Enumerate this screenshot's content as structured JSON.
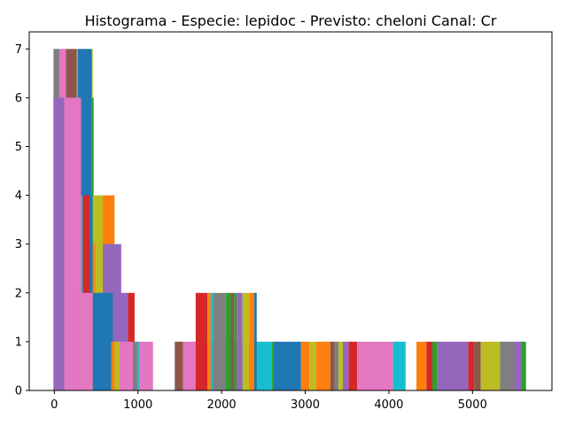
{
  "chart_data": {
    "type": "bar",
    "title": "Histograma - Especie: lepidoc - Previsto: cheloni Canal: Cr",
    "xlabel": "",
    "ylabel": "",
    "xlim": [
      -300,
      5950
    ],
    "ylim": [
      0,
      7.35
    ],
    "x_ticks": [
      0,
      1000,
      2000,
      3000,
      4000,
      5000
    ],
    "y_ticks": [
      0,
      1,
      2,
      3,
      4,
      5,
      6,
      7
    ],
    "grid": false,
    "legend": "none",
    "palette": [
      "#1f77b4",
      "#ff7f0e",
      "#2ca02c",
      "#d62728",
      "#9467bd",
      "#8c564b",
      "#e377c2",
      "#7f7f7f",
      "#bcbd22",
      "#17becf"
    ],
    "bars": [
      {
        "x0": -10,
        "x1": 60,
        "height": 7,
        "color": "#7f7f7f"
      },
      {
        "x0": 60,
        "x1": 140,
        "height": 7,
        "color": "#e377c2"
      },
      {
        "x0": 140,
        "x1": 270,
        "height": 7,
        "color": "#8c564b"
      },
      {
        "x0": 270,
        "x1": 280,
        "height": 7,
        "color": "#bcbd22"
      },
      {
        "x0": 280,
        "x1": 450,
        "height": 7,
        "color": "#1f77b4"
      },
      {
        "x0": 450,
        "x1": 460,
        "height": 7,
        "color": "#bcbd22"
      },
      {
        "x0": 450,
        "x1": 470,
        "height": 6,
        "color": "#2ca02c"
      },
      {
        "x0": -10,
        "x1": 120,
        "height": 6,
        "color": "#9467bd"
      },
      {
        "x0": 120,
        "x1": 320,
        "height": 6,
        "color": "#e377c2"
      },
      {
        "x0": 320,
        "x1": 340,
        "height": 4,
        "color": "#17becf"
      },
      {
        "x0": 340,
        "x1": 420,
        "height": 4,
        "color": "#d62728"
      },
      {
        "x0": 420,
        "x1": 460,
        "height": 4,
        "color": "#1f77b4"
      },
      {
        "x0": 460,
        "x1": 580,
        "height": 4,
        "color": "#bcbd22"
      },
      {
        "x0": 580,
        "x1": 720,
        "height": 4,
        "color": "#ff7f0e"
      },
      {
        "x0": 460,
        "x1": 490,
        "height": 3,
        "color": "#ff7f0e"
      },
      {
        "x0": 540,
        "x1": 580,
        "height": 3,
        "color": "#bcbd22"
      },
      {
        "x0": 580,
        "x1": 800,
        "height": 3,
        "color": "#9467bd"
      },
      {
        "x0": 300,
        "x1": 460,
        "height": 2,
        "color": "#e377c2"
      },
      {
        "x0": 460,
        "x1": 700,
        "height": 2,
        "color": "#1f77b4"
      },
      {
        "x0": 700,
        "x1": 880,
        "height": 2,
        "color": "#9467bd"
      },
      {
        "x0": 880,
        "x1": 960,
        "height": 2,
        "color": "#d62728"
      },
      {
        "x0": 680,
        "x1": 720,
        "height": 1,
        "color": "#ff7f0e"
      },
      {
        "x0": 720,
        "x1": 780,
        "height": 1,
        "color": "#bcbd22"
      },
      {
        "x0": 780,
        "x1": 940,
        "height": 1,
        "color": "#e377c2"
      },
      {
        "x0": 940,
        "x1": 1000,
        "height": 1,
        "color": "#7f7f7f"
      },
      {
        "x0": 1000,
        "x1": 1020,
        "height": 1,
        "color": "#17becf"
      },
      {
        "x0": 1020,
        "x1": 1180,
        "height": 1,
        "color": "#e377c2"
      },
      {
        "x0": 1440,
        "x1": 1540,
        "height": 1,
        "color": "#8c564b"
      },
      {
        "x0": 1540,
        "x1": 1780,
        "height": 1,
        "color": "#e377c2"
      },
      {
        "x0": 1780,
        "x1": 1850,
        "height": 1,
        "color": "#7f7f7f"
      },
      {
        "x0": 1850,
        "x1": 1880,
        "height": 1,
        "color": "#8c564b"
      },
      {
        "x0": 1880,
        "x1": 1950,
        "height": 1,
        "color": "#d62728"
      },
      {
        "x0": 1950,
        "x1": 2050,
        "height": 1,
        "color": "#17becf"
      },
      {
        "x0": 2050,
        "x1": 2100,
        "height": 1,
        "color": "#1f77b4"
      },
      {
        "x0": 2100,
        "x1": 2170,
        "height": 1,
        "color": "#e377c2"
      },
      {
        "x0": 2170,
        "x1": 2200,
        "height": 1,
        "color": "#9467bd"
      },
      {
        "x0": 2200,
        "x1": 2350,
        "height": 1,
        "color": "#17becf"
      },
      {
        "x0": 2350,
        "x1": 2400,
        "height": 1,
        "color": "#bcbd22"
      },
      {
        "x0": 2400,
        "x1": 2600,
        "height": 1,
        "color": "#17becf"
      },
      {
        "x0": 2600,
        "x1": 2620,
        "height": 1,
        "color": "#2ca02c"
      },
      {
        "x0": 2620,
        "x1": 2950,
        "height": 1,
        "color": "#1f77b4"
      },
      {
        "x0": 2950,
        "x1": 3050,
        "height": 1,
        "color": "#ff7f0e"
      },
      {
        "x0": 3050,
        "x1": 3130,
        "height": 1,
        "color": "#bcbd22"
      },
      {
        "x0": 3130,
        "x1": 3300,
        "height": 1,
        "color": "#ff7f0e"
      },
      {
        "x0": 3300,
        "x1": 3350,
        "height": 1,
        "color": "#8c564b"
      },
      {
        "x0": 3350,
        "x1": 3400,
        "height": 1,
        "color": "#7f7f7f"
      },
      {
        "x0": 3400,
        "x1": 3450,
        "height": 1,
        "color": "#bcbd22"
      },
      {
        "x0": 3450,
        "x1": 3520,
        "height": 1,
        "color": "#9467bd"
      },
      {
        "x0": 3520,
        "x1": 3620,
        "height": 1,
        "color": "#d62728"
      },
      {
        "x0": 3620,
        "x1": 4050,
        "height": 1,
        "color": "#e377c2"
      },
      {
        "x0": 4050,
        "x1": 4200,
        "height": 1,
        "color": "#17becf"
      },
      {
        "x0": 4330,
        "x1": 4450,
        "height": 1,
        "color": "#ff7f0e"
      },
      {
        "x0": 4450,
        "x1": 4520,
        "height": 1,
        "color": "#d62728"
      },
      {
        "x0": 4520,
        "x1": 4580,
        "height": 1,
        "color": "#2ca02c"
      },
      {
        "x0": 4580,
        "x1": 4950,
        "height": 1,
        "color": "#9467bd"
      },
      {
        "x0": 4950,
        "x1": 5020,
        "height": 1,
        "color": "#d62728"
      },
      {
        "x0": 5020,
        "x1": 5100,
        "height": 1,
        "color": "#8c564b"
      },
      {
        "x0": 5100,
        "x1": 5330,
        "height": 1,
        "color": "#bcbd22"
      },
      {
        "x0": 5330,
        "x1": 5500,
        "height": 1,
        "color": "#7f7f7f"
      },
      {
        "x0": 5500,
        "x1": 5580,
        "height": 1,
        "color": "#9467bd"
      },
      {
        "x0": 5580,
        "x1": 5640,
        "height": 1,
        "color": "#2ca02c"
      },
      {
        "x0": 1690,
        "x1": 1830,
        "height": 2,
        "color": "#d62728"
      },
      {
        "x0": 1830,
        "x1": 1870,
        "height": 2,
        "color": "#ff7f0e"
      },
      {
        "x0": 1870,
        "x1": 1900,
        "height": 2,
        "color": "#17becf"
      },
      {
        "x0": 1900,
        "x1": 2050,
        "height": 2,
        "color": "#7f7f7f"
      },
      {
        "x0": 2050,
        "x1": 2110,
        "height": 2,
        "color": "#2ca02c"
      },
      {
        "x0": 2110,
        "x1": 2150,
        "height": 2,
        "color": "#8c564b"
      },
      {
        "x0": 2150,
        "x1": 2180,
        "height": 2,
        "color": "#2ca02c"
      },
      {
        "x0": 2180,
        "x1": 2250,
        "height": 2,
        "color": "#9467bd"
      },
      {
        "x0": 2250,
        "x1": 2330,
        "height": 2,
        "color": "#bcbd22"
      },
      {
        "x0": 2330,
        "x1": 2390,
        "height": 2,
        "color": "#ff7f0e"
      },
      {
        "x0": 2390,
        "x1": 2420,
        "height": 2,
        "color": "#1f77b4"
      }
    ]
  }
}
